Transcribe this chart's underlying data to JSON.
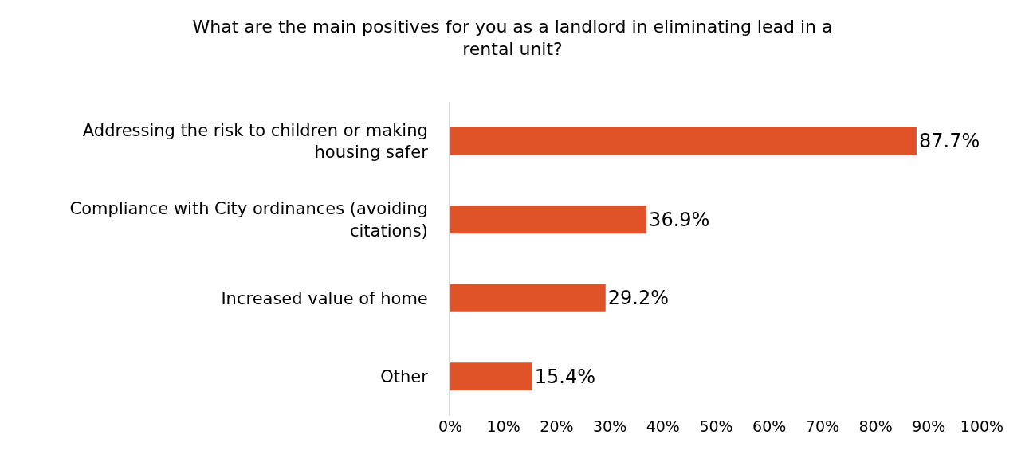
{
  "chart_data": {
    "type": "bar",
    "orientation": "horizontal",
    "title": "What are the main positives for you as a landlord in eliminating lead in a rental unit?",
    "categories": [
      "Addressing the risk to children or making housing safer",
      "Compliance with City ordinances (avoiding citations)",
      "Increased value of home",
      "Other"
    ],
    "values": [
      87.7,
      36.9,
      29.2,
      15.4
    ],
    "value_labels": [
      "87.7%",
      "36.9%",
      "29.2%",
      "15.4%"
    ],
    "color": "#e05328",
    "xlim": [
      0,
      100
    ],
    "xticks": [
      {
        "value": 0,
        "label": "0%"
      },
      {
        "value": 10,
        "label": "10%"
      },
      {
        "value": 20,
        "label": "20%"
      },
      {
        "value": 30,
        "label": "30%"
      },
      {
        "value": 40,
        "label": "40%"
      },
      {
        "value": 50,
        "label": "50%"
      },
      {
        "value": 60,
        "label": "60%"
      },
      {
        "value": 70,
        "label": "70%"
      },
      {
        "value": 80,
        "label": "80%"
      },
      {
        "value": 90,
        "label": "90%"
      },
      {
        "value": 100,
        "label": "100%"
      }
    ],
    "legend": false
  }
}
